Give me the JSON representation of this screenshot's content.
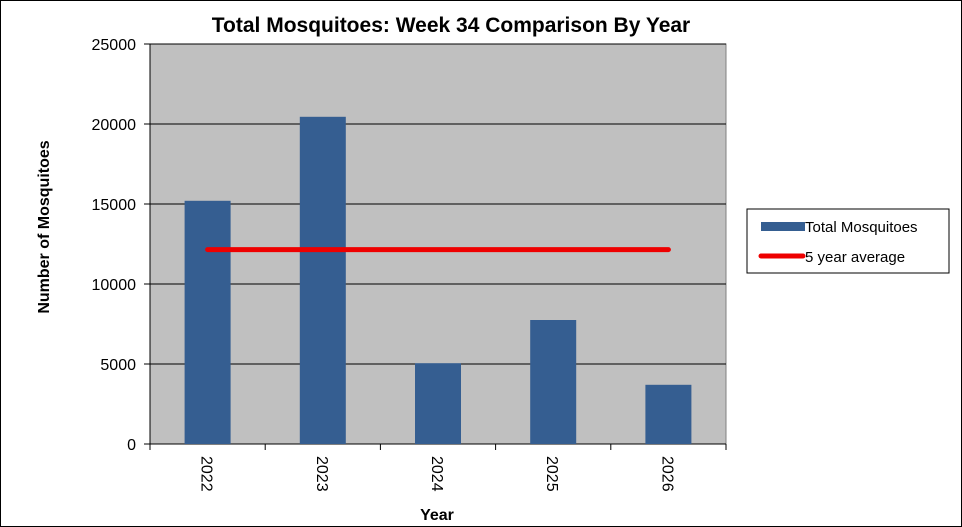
{
  "chart_data": {
    "type": "bar",
    "title": "Total Mosquitoes:  Week 34 Comparison  By Year",
    "xlabel": "Year",
    "ylabel": "Number of Mosquitoes",
    "categories": [
      "2022",
      "2023",
      "2024",
      "2025",
      "2026"
    ],
    "series": [
      {
        "name": "Total Mosquitoes",
        "type": "bar",
        "color": "#355E91",
        "values": [
          15200,
          20450,
          5050,
          7750,
          3700
        ]
      },
      {
        "name": "5 year average",
        "type": "line",
        "color": "#EE0000",
        "values": [
          12150,
          12150,
          12150,
          12150,
          12150
        ]
      }
    ],
    "ylim": [
      0,
      25000
    ],
    "yticks": [
      "0",
      "5000",
      "10000",
      "15000",
      "20000",
      "25000"
    ],
    "grid": true,
    "plot_background": "#C0C0C0",
    "legend_position": "right"
  }
}
